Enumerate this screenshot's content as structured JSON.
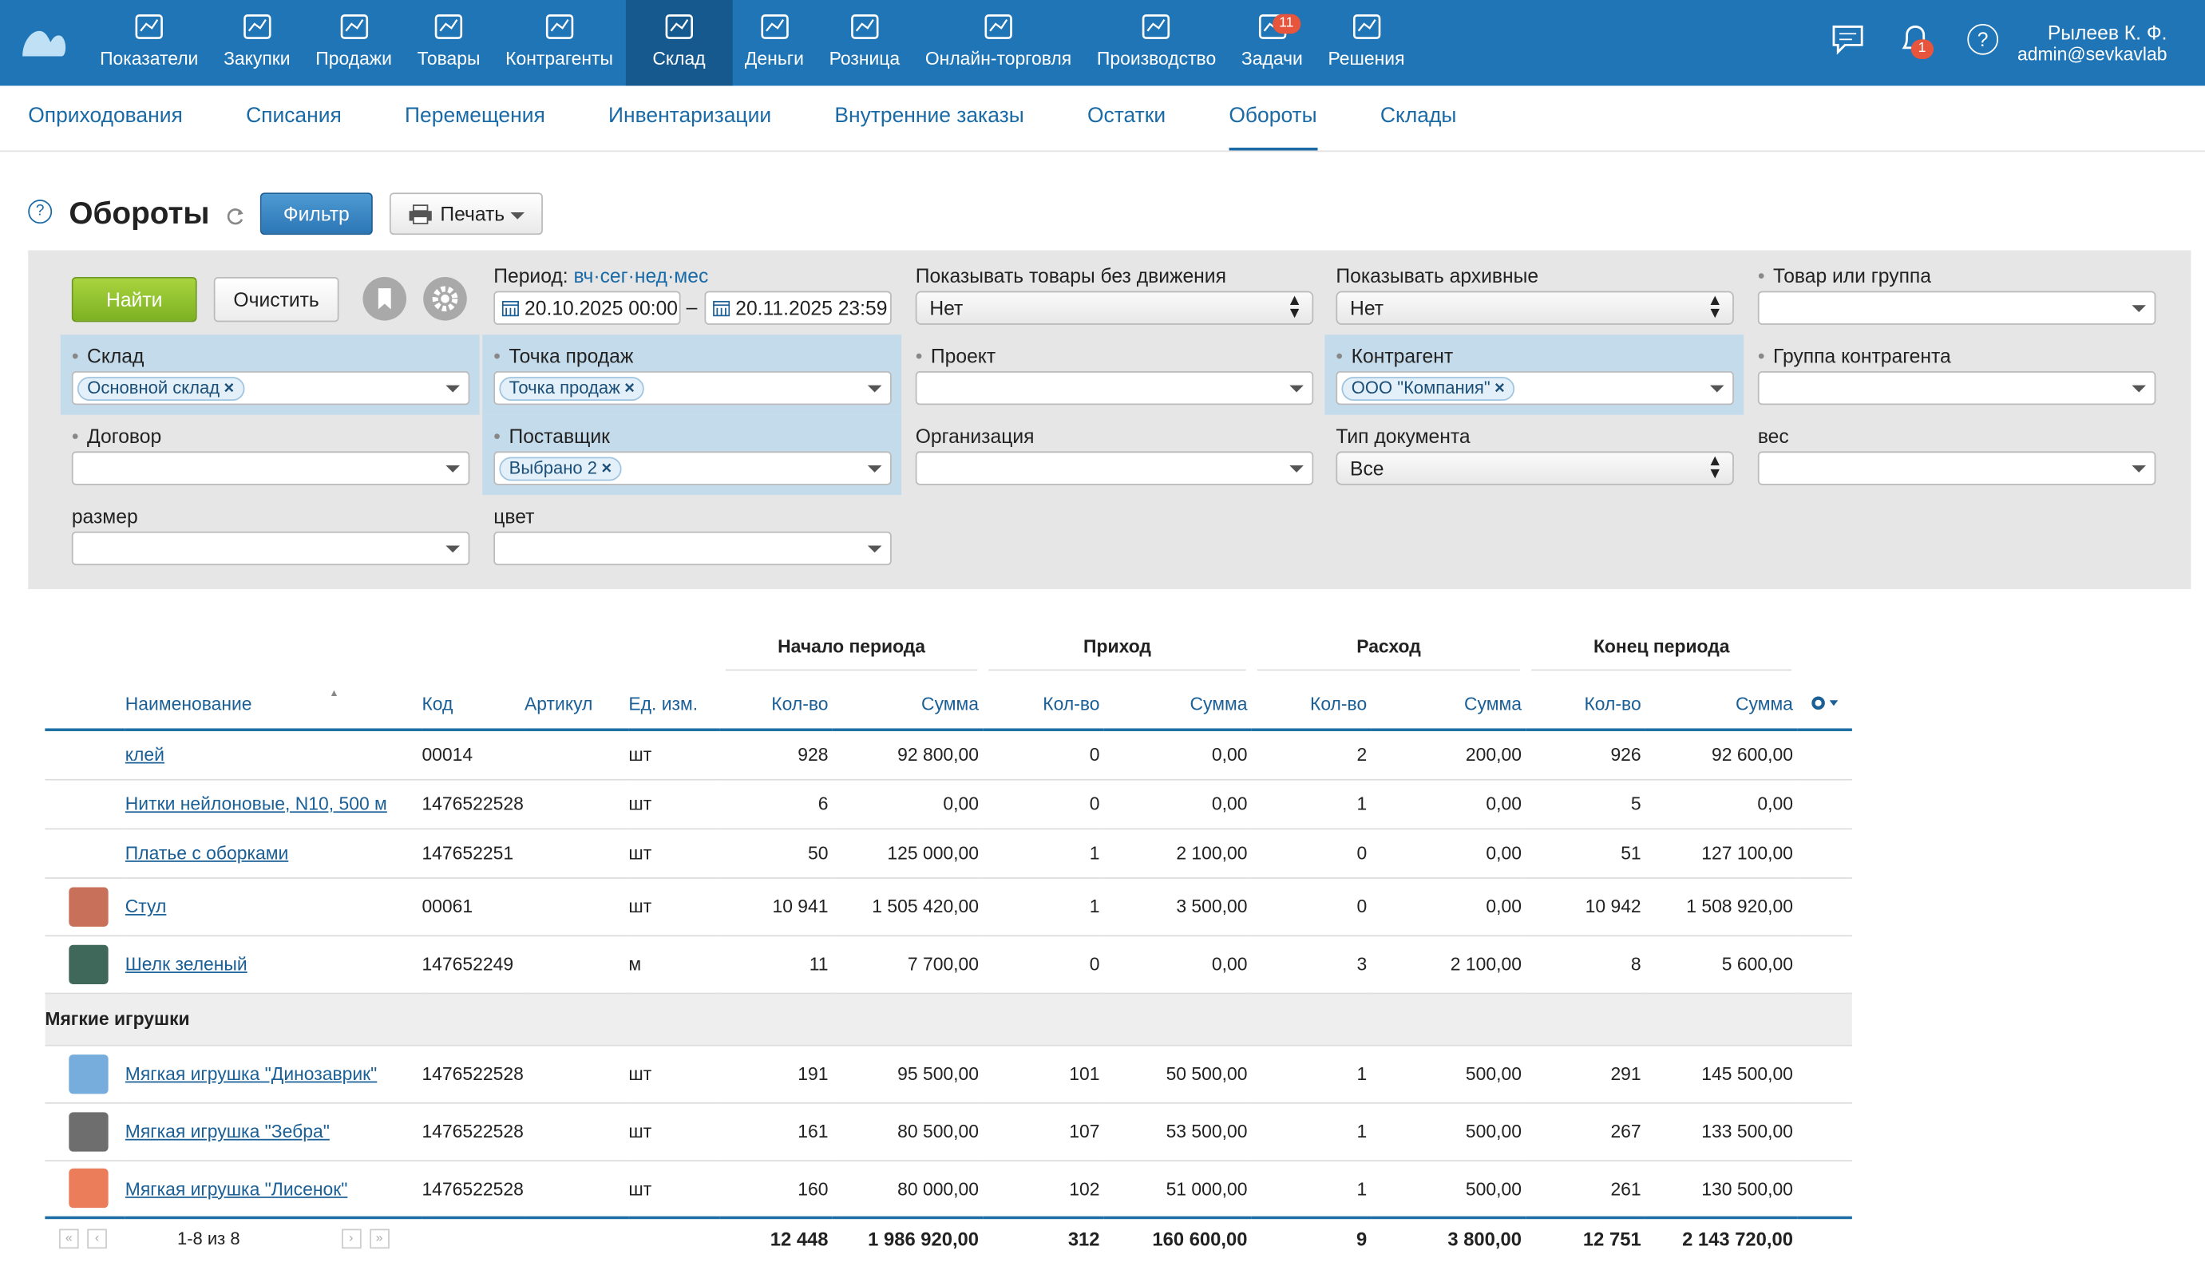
{
  "nav": {
    "items": [
      {
        "label": "Показатели"
      },
      {
        "label": "Закупки"
      },
      {
        "label": "Продажи"
      },
      {
        "label": "Товары"
      },
      {
        "label": "Контрагенты"
      },
      {
        "label": "Склад",
        "active": true
      },
      {
        "label": "Деньги"
      },
      {
        "label": "Розница"
      },
      {
        "label": "Онлайн-торговля"
      },
      {
        "label": "Производство"
      },
      {
        "label": "Задачи",
        "badge": "11"
      },
      {
        "label": "Решения"
      }
    ],
    "notifications_badge": "1",
    "help": "?",
    "user_name": "Рылеев К. Ф.",
    "user_email": "admin@sevkavlab"
  },
  "subnav": [
    {
      "label": "Оприходования"
    },
    {
      "label": "Списания"
    },
    {
      "label": "Перемещения"
    },
    {
      "label": "Инвентаризации"
    },
    {
      "label": "Внутренние заказы"
    },
    {
      "label": "Остатки"
    },
    {
      "label": "Обороты",
      "active": true
    },
    {
      "label": "Склады"
    }
  ],
  "header": {
    "help": "?",
    "title": "Обороты",
    "filter_button": "Фильтр",
    "print_button": "Печать"
  },
  "filter": {
    "find_button": "Найти",
    "clear_button": "Очистить",
    "period_label": "Период:",
    "period_links": [
      "вч",
      "сег",
      "нед",
      "мес"
    ],
    "date_from": "20.10.2025 00:00",
    "date_separator": "–",
    "date_to": "20.11.2025 23:59",
    "top_fields": [
      {
        "label": "Показывать товары без движения",
        "kind": "select",
        "value": "Нет"
      },
      {
        "label": "Показывать архивные",
        "kind": "select",
        "value": "Нет"
      },
      {
        "label": "Товар или группа",
        "kind": "combo",
        "marked": true
      }
    ],
    "rows": [
      [
        {
          "label": "Склад",
          "kind": "combo",
          "marked": true,
          "highlighted": true,
          "tag": "Основной склад"
        },
        {
          "label": "Точка продаж",
          "kind": "combo",
          "marked": true,
          "highlighted": true,
          "tag": "Точка продаж"
        },
        {
          "label": "Проект",
          "kind": "combo",
          "marked": true
        },
        {
          "label": "Контрагент",
          "kind": "combo",
          "marked": true,
          "highlighted": true,
          "tag": "ООО \"Компания\""
        },
        {
          "label": "Группа контрагента",
          "kind": "combo",
          "marked": true
        }
      ],
      [
        {
          "label": "Договор",
          "kind": "combo",
          "marked": true
        },
        {
          "label": "Поставщик",
          "kind": "combo",
          "marked": true,
          "highlighted": true,
          "tag": "Выбрано 2"
        },
        {
          "label": "Организация",
          "kind": "combo"
        },
        {
          "label": "Тип документа",
          "kind": "select",
          "value": "Все"
        },
        {
          "label": "вес",
          "kind": "combo"
        }
      ],
      [
        {
          "label": "размер",
          "kind": "combo"
        },
        {
          "label": "цвет",
          "kind": "combo"
        }
      ]
    ]
  },
  "table": {
    "groups": [
      "Начало периода",
      "Приход",
      "Расход",
      "Конец периода"
    ],
    "columns": [
      "Наименование",
      "Код",
      "Артикул",
      "Ед. изм.",
      "Кол-во",
      "Сумма",
      "Кол-во",
      "Сумма",
      "Кол-во",
      "Сумма",
      "Кол-во",
      "Сумма"
    ],
    "rows": [
      {
        "name": "клей",
        "code": "00014",
        "article": "",
        "unit": "шт",
        "cells": [
          "928",
          "92 800,00",
          "0",
          "0,00",
          "2",
          "200,00",
          "926",
          "92 600,00"
        ]
      },
      {
        "name": "Нитки нейлоновые, N10, 500 м",
        "code": "1476522528",
        "article": "",
        "unit": "шт",
        "cells": [
          "6",
          "0,00",
          "0",
          "0,00",
          "1",
          "0,00",
          "5",
          "0,00"
        ]
      },
      {
        "name": "Платье с оборками",
        "code": "147652251",
        "article": "",
        "unit": "шт",
        "cells": [
          "50",
          "125 000,00",
          "1",
          "2 100,00",
          "0",
          "0,00",
          "51",
          "127 100,00"
        ]
      },
      {
        "name": "Стул",
        "code": "00061",
        "article": "",
        "unit": "шт",
        "cells": [
          "10 941",
          "1 505 420,00",
          "1",
          "3 500,00",
          "0",
          "0,00",
          "10 942",
          "1 508 920,00"
        ]
      },
      {
        "name": "Шелк зеленый",
        "code": "147652249",
        "article": "",
        "unit": "м",
        "cells": [
          "11",
          "7 700,00",
          "0",
          "0,00",
          "3",
          "2 100,00",
          "8",
          "5 600,00"
        ]
      },
      {
        "group": "Мягкие игрушки"
      },
      {
        "name": "Мягкая игрушка \"Динозаврик\"",
        "code": "1476522528",
        "article": "",
        "unit": "шт",
        "cells": [
          "191",
          "95 500,00",
          "101",
          "50 500,00",
          "1",
          "500,00",
          "291",
          "145 500,00"
        ]
      },
      {
        "name": "Мягкая игрушка \"Зебра\"",
        "code": "1476522528",
        "article": "",
        "unit": "шт",
        "cells": [
          "161",
          "80 500,00",
          "107",
          "53 500,00",
          "1",
          "500,00",
          "267",
          "133 500,00"
        ]
      },
      {
        "name": "Мягкая игрушка \"Лисенок\"",
        "code": "1476522528",
        "article": "",
        "unit": "шт",
        "cells": [
          "160",
          "80 000,00",
          "102",
          "51 000,00",
          "1",
          "500,00",
          "261",
          "130 500,00"
        ]
      }
    ],
    "totals": [
      "12 448",
      "1 986 920,00",
      "312",
      "160 600,00",
      "9",
      "3 800,00",
      "12 751",
      "2 143 720,00"
    ],
    "pagination": "1-8 из 8"
  }
}
